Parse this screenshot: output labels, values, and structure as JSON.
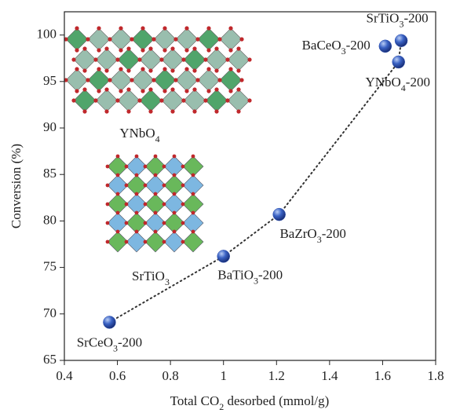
{
  "chart_data": {
    "type": "scatter",
    "x_label": "Total CO2 desorbed (mmol/g)",
    "y_label": "Conversion (%)",
    "x": [
      0.57,
      1.0,
      1.21,
      1.61,
      1.67,
      1.66
    ],
    "values": [
      69.1,
      76.2,
      80.7,
      98.8,
      99.4,
      97.1
    ],
    "labels": [
      "SrCeO3-200",
      "BaTiO3-200",
      "BaZrO3-200",
      "BaCeO3-200",
      "SrTiO3-200",
      "YNbO4-200"
    ],
    "color": "#2f52b0",
    "xlim": [
      0.4,
      1.8
    ],
    "xticks": [
      0.4,
      0.6,
      0.8,
      1.0,
      1.2,
      1.4,
      1.6,
      1.8
    ],
    "ylim": [
      65,
      102.5
    ],
    "yticks": [
      65,
      70,
      75,
      80,
      85,
      90,
      95,
      100
    ],
    "annotations": [
      "YNbO4",
      "SrTiO3"
    ]
  }
}
